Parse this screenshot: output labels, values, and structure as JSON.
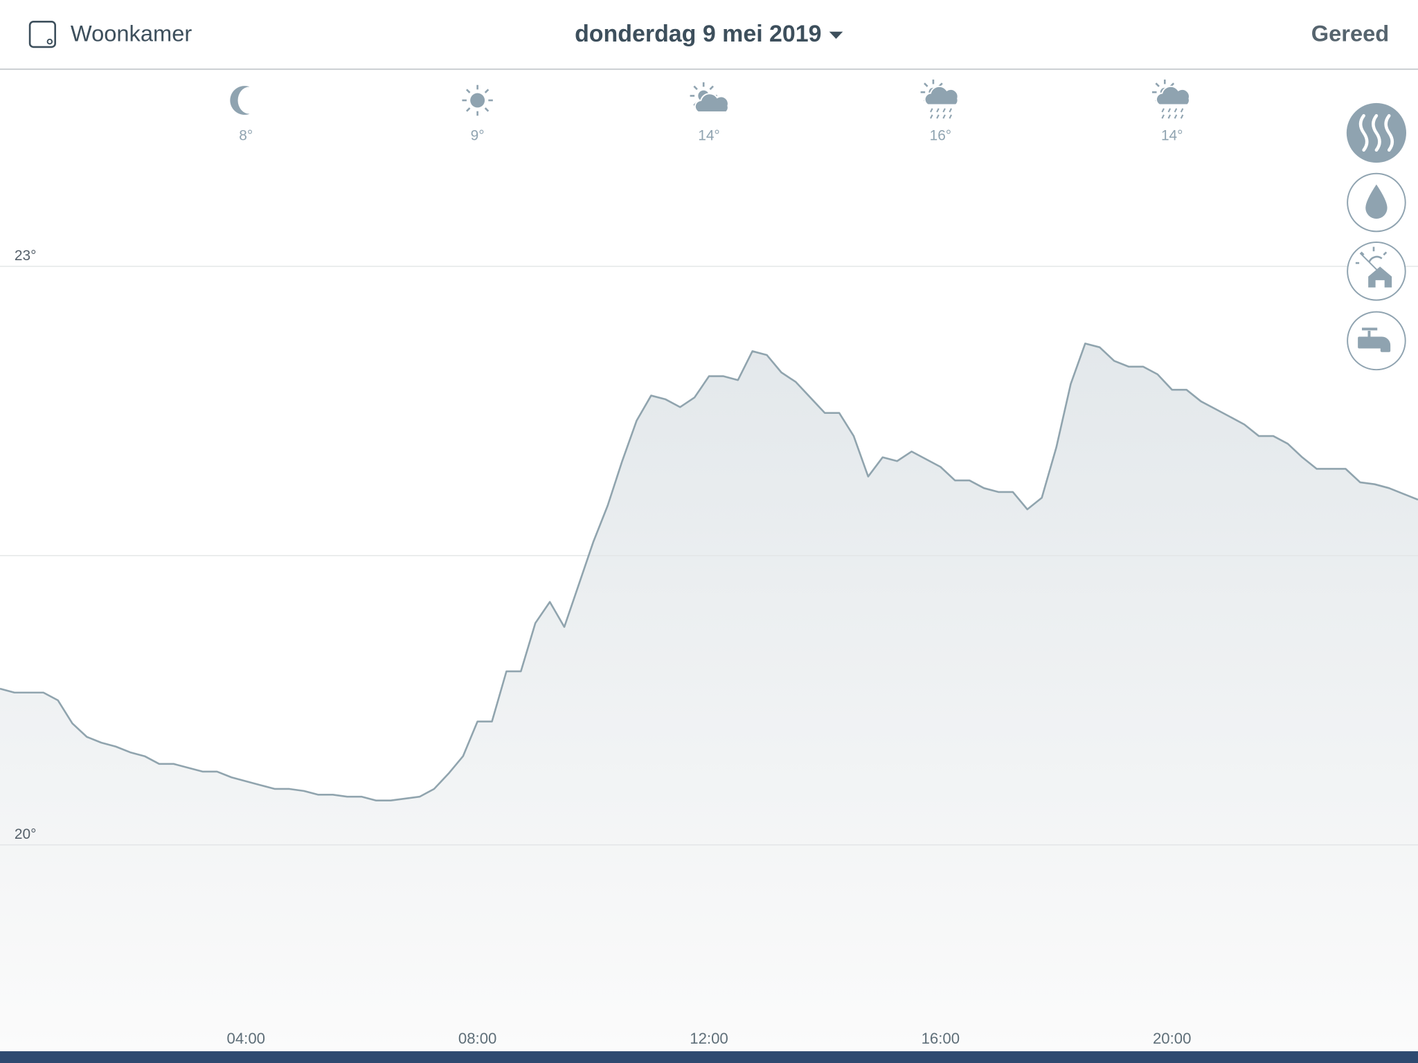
{
  "header": {
    "room": "Woonkamer",
    "date": "donderdag 9 mei 2019",
    "done": "Gereed"
  },
  "weather": [
    {
      "temp": "8°"
    },
    {
      "temp": "9°"
    },
    {
      "temp": "14°"
    },
    {
      "temp": "16°"
    },
    {
      "temp": "14°"
    }
  ],
  "chart_data": {
    "type": "area",
    "x": [
      -0.25,
      0,
      0.25,
      0.5,
      0.75,
      1,
      1.25,
      1.5,
      1.75,
      2,
      2.25,
      2.5,
      2.75,
      3,
      3.25,
      3.5,
      3.75,
      4,
      4.25,
      4.5,
      4.75,
      5,
      5.25,
      5.5,
      5.75,
      6,
      6.25,
      6.5,
      6.75,
      7,
      7.25,
      7.5,
      7.75,
      8,
      8.25,
      8.5,
      8.75,
      9,
      9.25,
      9.5,
      9.75,
      10,
      10.25,
      10.5,
      10.75,
      11,
      11.25,
      11.5,
      11.75,
      12,
      12.25,
      12.5,
      12.75,
      13,
      13.25,
      13.5,
      13.75,
      14,
      14.25,
      14.5,
      14.75,
      15,
      15.25,
      15.5,
      15.75,
      16,
      16.25,
      16.5,
      16.75,
      17,
      17.25,
      17.5,
      17.75,
      18,
      18.25,
      18.5,
      18.75,
      19,
      19.25,
      19.5,
      19.75,
      20,
      20.25,
      20.5,
      20.75,
      21,
      21.25,
      21.5,
      21.75,
      22,
      22.25,
      22.5,
      22.75,
      23,
      23.25,
      23.5,
      23.75,
      24,
      24.25
    ],
    "values": [
      20.81,
      20.79,
      20.79,
      20.79,
      20.75,
      20.63,
      20.56,
      20.53,
      20.51,
      20.48,
      20.46,
      20.42,
      20.42,
      20.4,
      20.38,
      20.38,
      20.35,
      20.33,
      20.31,
      20.29,
      20.29,
      20.28,
      20.26,
      20.26,
      20.25,
      20.25,
      20.23,
      20.23,
      20.24,
      20.25,
      20.29,
      20.37,
      20.46,
      20.64,
      20.64,
      20.9,
      20.9,
      21.15,
      21.26,
      21.13,
      21.35,
      21.57,
      21.76,
      21.99,
      22.2,
      22.33,
      22.31,
      22.27,
      22.32,
      22.43,
      22.43,
      22.41,
      22.56,
      22.54,
      22.45,
      22.4,
      22.32,
      22.24,
      22.24,
      22.12,
      21.91,
      22.01,
      21.99,
      22.04,
      22.0,
      21.96,
      21.89,
      21.89,
      21.85,
      21.83,
      21.83,
      21.74,
      21.8,
      22.06,
      22.39,
      22.6,
      22.58,
      22.51,
      22.48,
      22.48,
      22.44,
      22.36,
      22.36,
      22.3,
      22.26,
      22.22,
      22.18,
      22.12,
      22.12,
      22.08,
      22.01,
      21.95,
      21.95,
      21.95,
      21.88,
      21.87,
      21.85,
      21.82,
      21.79
    ],
    "color": "#90a4ae",
    "xlim": [
      -0.25,
      24.25
    ],
    "xticks": [
      {
        "value": 4,
        "label": "04:00"
      },
      {
        "value": 8,
        "label": "08:00"
      },
      {
        "value": 12,
        "label": "12:00"
      },
      {
        "value": 16,
        "label": "16:00"
      },
      {
        "value": 20,
        "label": "20:00"
      }
    ],
    "ylim": [
      18.93,
      24.02
    ],
    "yticks": [
      {
        "value": 20,
        "label": "20°"
      },
      {
        "value": 21.5,
        "label": null
      },
      {
        "value": 23,
        "label": "23°"
      }
    ],
    "grid": true
  }
}
